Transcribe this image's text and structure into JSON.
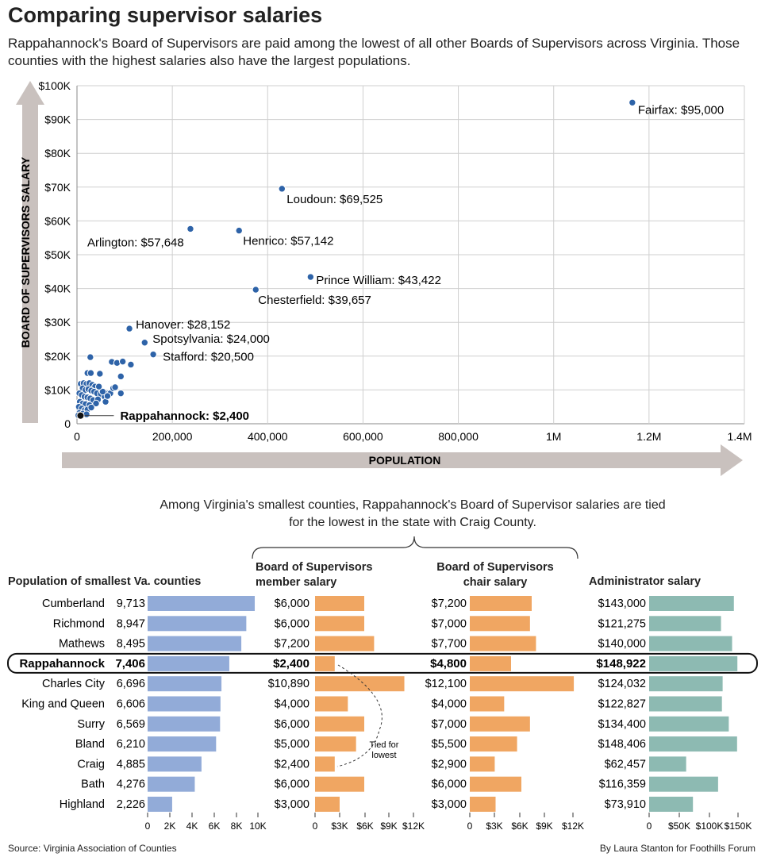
{
  "title": "Comparing supervisor salaries",
  "subtitle": "Rappahannock's Board of Supervisors are paid among the lowest of all other Boards of Supervisors across Virginia. Those counties with the highest salaries also have the largest populations.",
  "colors": {
    "point": "#2e63a8",
    "highlight": "#111111",
    "grid": "#cfcfcf",
    "arrow": "#c9c1be",
    "pop_bar": "#92abd8",
    "salary_bar": "#f0a662",
    "admin_bar": "#8dbab2"
  },
  "chart_data": [
    {
      "type": "scatter",
      "xlabel": "POPULATION",
      "ylabel": "BOARD OF SUPERVISORS SALARY",
      "xlim": [
        0,
        1400000
      ],
      "ylim": [
        0,
        100000
      ],
      "grid": true,
      "xticks": [
        "0",
        "200,000",
        "400,000",
        "600,000",
        "800,000",
        "1M",
        "1.2M",
        "1.4M"
      ],
      "yticks": [
        "0",
        "$10K",
        "$20K",
        "$30K",
        "$40K",
        "$50K",
        "$60K",
        "$70K",
        "$80K",
        "$90K",
        "$100K"
      ],
      "labeled_points": [
        {
          "label": "Fairfax: $95,000",
          "x": 1165000,
          "y": 95000
        },
        {
          "label": "Loudoun: $69,525",
          "x": 430000,
          "y": 69525
        },
        {
          "label": "Arlington: $57,648",
          "x": 238000,
          "y": 57648
        },
        {
          "label": "Henrico: $57,142",
          "x": 340000,
          "y": 57142
        },
        {
          "label": "Prince William: $43,422",
          "x": 490000,
          "y": 43422
        },
        {
          "label": "Chesterfield: $39,657",
          "x": 375000,
          "y": 39657
        },
        {
          "label": "Hanover: $28,152",
          "x": 110000,
          "y": 28152
        },
        {
          "label": "Spotsylvania: $24,000",
          "x": 142000,
          "y": 24000
        },
        {
          "label": "Stafford: $20,500",
          "x": 160000,
          "y": 20500
        }
      ],
      "highlight": {
        "label": "Rappahannock: $2,400",
        "x": 7406,
        "y": 2400
      },
      "points": [
        [
          28000,
          19700
        ],
        [
          73000,
          18300
        ],
        [
          84000,
          18000
        ],
        [
          96000,
          18400
        ],
        [
          113000,
          17500
        ],
        [
          22000,
          15000
        ],
        [
          29000,
          15000
        ],
        [
          48000,
          14800
        ],
        [
          92000,
          14000
        ],
        [
          8000,
          11800
        ],
        [
          14000,
          12000
        ],
        [
          20000,
          11800
        ],
        [
          26000,
          12000
        ],
        [
          32000,
          11500
        ],
        [
          38000,
          11000
        ],
        [
          12000,
          10500
        ],
        [
          18000,
          10000
        ],
        [
          24000,
          10200
        ],
        [
          30000,
          9800
        ],
        [
          36000,
          9500
        ],
        [
          42000,
          9000
        ],
        [
          50000,
          8800
        ],
        [
          66000,
          9000
        ],
        [
          70000,
          9000
        ],
        [
          92000,
          9000
        ],
        [
          76000,
          10500
        ],
        [
          80000,
          10800
        ],
        [
          5000,
          9000
        ],
        [
          10000,
          8500
        ],
        [
          16000,
          8000
        ],
        [
          22000,
          7800
        ],
        [
          28000,
          7500
        ],
        [
          34000,
          7000
        ],
        [
          44000,
          7200
        ],
        [
          58000,
          8000
        ],
        [
          6000,
          6500
        ],
        [
          12000,
          6000
        ],
        [
          18000,
          5800
        ],
        [
          26000,
          5500
        ],
        [
          40000,
          6000
        ],
        [
          4000,
          5000
        ],
        [
          10000,
          4500
        ],
        [
          16000,
          4000
        ],
        [
          22000,
          4200
        ],
        [
          30000,
          4800
        ],
        [
          5000,
          3200
        ],
        [
          12000,
          3000
        ],
        [
          20000,
          2800
        ],
        [
          3000,
          2500
        ],
        [
          60000,
          6500
        ],
        [
          54000,
          9500
        ],
        [
          46000,
          11000
        ],
        [
          64000,
          8200
        ]
      ]
    },
    {
      "type": "bar",
      "title": "Population of smallest Va. counties",
      "categories": [
        "Cumberland",
        "Richmond",
        "Mathews",
        "Rappahannock",
        "Charles City",
        "King and Queen",
        "Surry",
        "Bland",
        "Craig",
        "Bath",
        "Highland"
      ],
      "values": [
        9713,
        8947,
        8495,
        7406,
        6696,
        6606,
        6569,
        6210,
        4885,
        4276,
        2226
      ],
      "labels": [
        "9,713",
        "8,947",
        "8,495",
        "7,406",
        "6,696",
        "6,606",
        "6,569",
        "6,210",
        "4,885",
        "4,276",
        "2,226"
      ],
      "xlim": [
        0,
        10000
      ],
      "xticks": [
        "0",
        "2K",
        "4K",
        "6K",
        "8K",
        "10K"
      ]
    },
    {
      "type": "bar",
      "title": "Board of Supervisors member salary",
      "values": [
        6000,
        6000,
        7200,
        2400,
        10890,
        4000,
        6000,
        5000,
        2400,
        6000,
        3000
      ],
      "labels": [
        "$6,000",
        "$6,000",
        "$7,200",
        "$2,400",
        "$10,890",
        "$4,000",
        "$6,000",
        "$5,000",
        "$2,400",
        "$6,000",
        "$3,000"
      ],
      "xlim": [
        0,
        12000
      ],
      "xticks": [
        "0",
        "$3K",
        "$6K",
        "$9K",
        "$12K"
      ],
      "annotation": "Tied for lowest"
    },
    {
      "type": "bar",
      "title": "Board of  Supervisors chair salary",
      "values": [
        7200,
        7000,
        7700,
        4800,
        12100,
        4000,
        7000,
        5500,
        2900,
        6000,
        3000
      ],
      "labels": [
        "$7,200",
        "$7,000",
        "$7,700",
        "$4,800",
        "$12,100",
        "$4,000",
        "$7,000",
        "$5,500",
        "$2,900",
        "$6,000",
        "$3,000"
      ],
      "xlim": [
        0,
        12000
      ],
      "xticks": [
        "0",
        "$3K",
        "$6K",
        "$9K",
        "$12K"
      ]
    },
    {
      "type": "bar",
      "title": "Administrator salary",
      "values": [
        143000,
        121275,
        140000,
        148922,
        124032,
        122827,
        134400,
        148406,
        62457,
        116359,
        73910
      ],
      "labels": [
        "$143,000",
        "$121,275",
        "$140,000",
        "$148,922",
        "$124,032",
        "$122,827",
        "$134,400",
        "$148,406",
        "$62,457",
        "$116,359",
        "$73,910"
      ],
      "xlim": [
        0,
        150000
      ],
      "xticks": [
        "0",
        "$50K",
        "$100K",
        "$150K"
      ]
    }
  ],
  "intro": "Among Virginia's smallest counties, Rappahannock's Board of Supervisor salaries are tied for the lowest in the state with Craig County.",
  "source": "Source: Virginia Association of Counties",
  "credit": "By Laura Stanton for Foothills Forum"
}
